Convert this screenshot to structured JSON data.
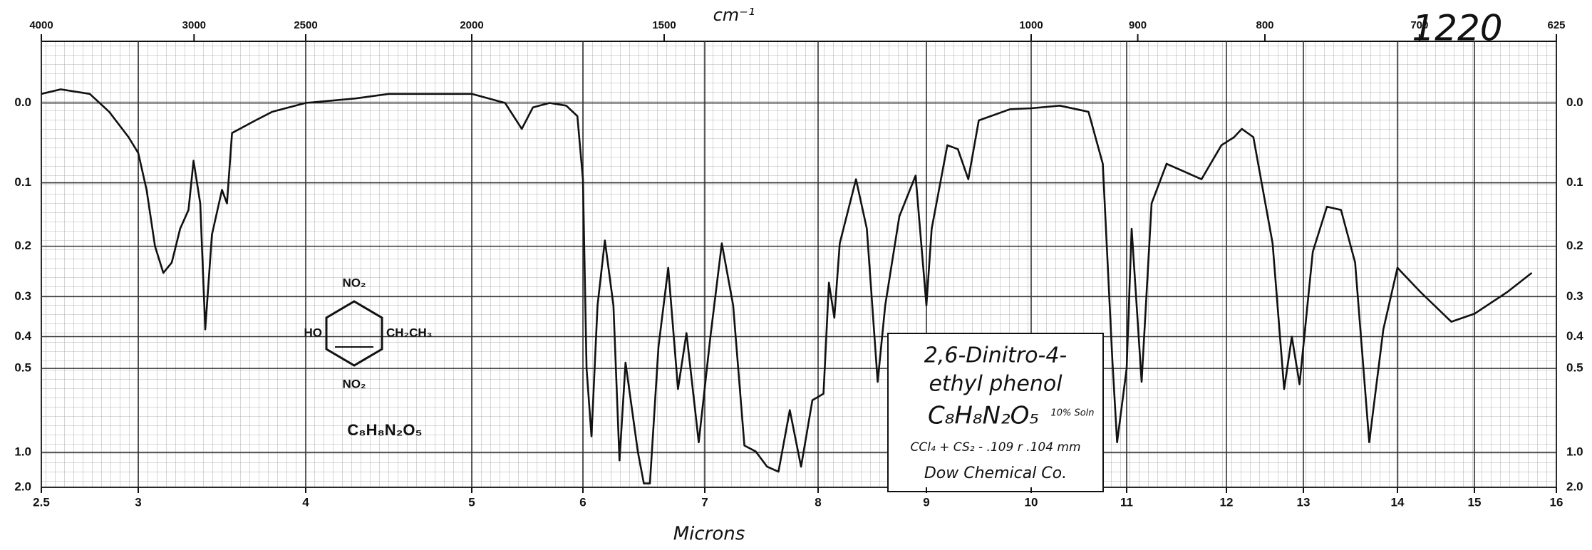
{
  "chart_data": {
    "type": "line",
    "top_axis_label": "cm⁻¹",
    "x_label": "Microns",
    "annotation": "1220",
    "x": [
      2.5,
      2.6,
      2.75,
      2.85,
      2.95,
      3.0,
      3.05,
      3.1,
      3.15,
      3.2,
      3.25,
      3.3,
      3.33,
      3.37,
      3.4,
      3.44,
      3.5,
      3.53,
      3.56,
      3.7,
      3.8,
      4.0,
      4.3,
      4.5,
      5.0,
      5.3,
      5.45,
      5.55,
      5.7,
      5.85,
      5.95,
      6.0,
      6.03,
      6.07,
      6.12,
      6.18,
      6.25,
      6.3,
      6.35,
      6.45,
      6.5,
      6.55,
      6.62,
      6.7,
      6.78,
      6.85,
      6.95,
      7.05,
      7.15,
      7.25,
      7.35,
      7.45,
      7.55,
      7.65,
      7.75,
      7.85,
      7.95,
      8.05,
      8.1,
      8.15,
      8.2,
      8.35,
      8.45,
      8.55,
      8.62,
      8.75,
      8.9,
      9.0,
      9.05,
      9.2,
      9.3,
      9.4,
      9.5,
      9.8,
      10.0,
      10.3,
      10.6,
      10.75,
      10.85,
      10.9,
      11.0,
      11.05,
      11.15,
      11.25,
      11.4,
      11.75,
      11.95,
      12.1,
      12.2,
      12.35,
      12.6,
      12.75,
      12.85,
      12.95,
      13.1,
      13.25,
      13.4,
      13.55,
      13.7,
      13.85,
      14.0,
      14.3,
      14.7,
      15.0,
      15.4,
      15.7
    ],
    "series": [
      {
        "color": "#111111",
        "values": [
          -0.01,
          -0.015,
          -0.01,
          0.01,
          0.04,
          0.06,
          0.11,
          0.2,
          0.25,
          0.23,
          0.17,
          0.14,
          0.07,
          0.13,
          0.38,
          0.18,
          0.11,
          0.13,
          0.035,
          0.02,
          0.01,
          0.0,
          -0.005,
          -0.01,
          -0.01,
          0.0,
          0.03,
          0.005,
          0.0,
          0.003,
          0.015,
          0.095,
          0.5,
          0.85,
          0.32,
          0.19,
          0.32,
          1.1,
          0.48,
          0.99,
          1.7,
          1.7,
          0.43,
          0.24,
          0.58,
          0.39,
          0.9,
          0.4,
          0.195,
          0.32,
          0.93,
          0.99,
          1.2,
          1.3,
          0.68,
          1.2,
          0.63,
          0.6,
          0.27,
          0.35,
          0.195,
          0.095,
          0.17,
          0.55,
          0.32,
          0.15,
          0.09,
          0.32,
          0.17,
          0.05,
          0.055,
          0.095,
          0.02,
          0.007,
          0.006,
          0.003,
          0.01,
          0.074,
          0.47,
          0.9,
          0.5,
          0.17,
          0.55,
          0.13,
          0.074,
          0.095,
          0.05,
          0.04,
          0.03,
          0.04,
          0.195,
          0.58,
          0.4,
          0.56,
          0.21,
          0.135,
          0.14,
          0.23,
          0.9,
          0.38,
          0.24,
          0.29,
          0.36,
          0.34,
          0.29,
          0.25
        ]
      }
    ],
    "xlim": [
      2.5,
      16
    ],
    "xticks": [
      2.5,
      3,
      4,
      5,
      6,
      7,
      8,
      9,
      10,
      11,
      12,
      13,
      14,
      15,
      16
    ],
    "x2ticks": [
      4000,
      3000,
      2500,
      2000,
      1500,
      1000,
      900,
      800,
      700,
      625
    ],
    "ylim": [
      2,
      -0.064
    ],
    "yticks": [
      {
        "value": 0,
        "label": "0.0"
      },
      0.1,
      0.2,
      0.3,
      0.4,
      0.5,
      {
        "value": 1,
        "label": "1.0"
      },
      {
        "value": 2,
        "label": "2.0"
      }
    ],
    "y_scale": "absorbance",
    "grid": true,
    "structure": {
      "top": "NO₂",
      "left": "HO",
      "right": "CH₂CH₃",
      "bottom": "NO₂",
      "formula": "C₈H₈N₂O₅"
    },
    "sample_box": [
      "2,6-Dinitro-4-",
      "ethyl phenol",
      "C₈H₈N₂O₅",
      "10% Soln",
      "CCl₄ + CS₂ - .109 r .104 mm",
      "Dow Chemical Co."
    ]
  }
}
